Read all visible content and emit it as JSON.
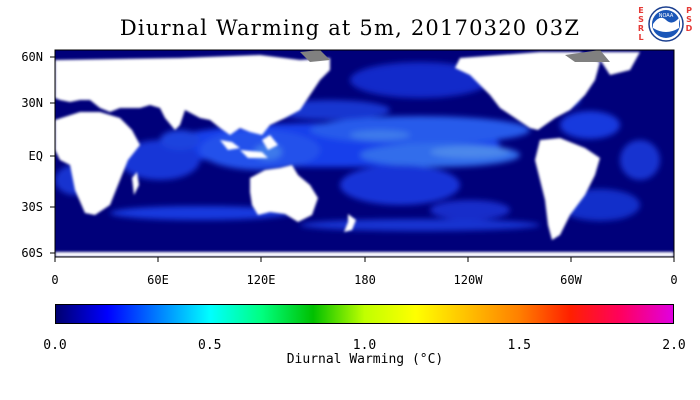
{
  "title": "Diurnal Warming at 5m, 20170320 03Z",
  "logo": {
    "agency_text": "NOAA",
    "left_letters": [
      "E",
      "S",
      "R",
      "L"
    ],
    "right_letters": [
      "P",
      "S",
      "D"
    ]
  },
  "map": {
    "lat_labels": [
      "60N",
      "30N",
      "EQ",
      "30S",
      "60S"
    ],
    "lon_labels": [
      "0",
      "60E",
      "120E",
      "180",
      "120W",
      "60W",
      "0"
    ],
    "ocean_base_color": "#00007a",
    "land_color": "#ffffff",
    "ice_color": "#808080"
  },
  "colorbar": {
    "title": "Diurnal Warming (°C)",
    "min": 0.0,
    "max": 2.0,
    "tick_labels": [
      "0.0",
      "0.5",
      "1.0",
      "1.5",
      "2.0"
    ],
    "colors": [
      "#000070",
      "#0000ff",
      "#0080ff",
      "#00ffff",
      "#00ff80",
      "#00c000",
      "#c0ff00",
      "#ffff00",
      "#ffc000",
      "#ff8000",
      "#ff2000",
      "#ff0060",
      "#e000e0"
    ]
  }
}
